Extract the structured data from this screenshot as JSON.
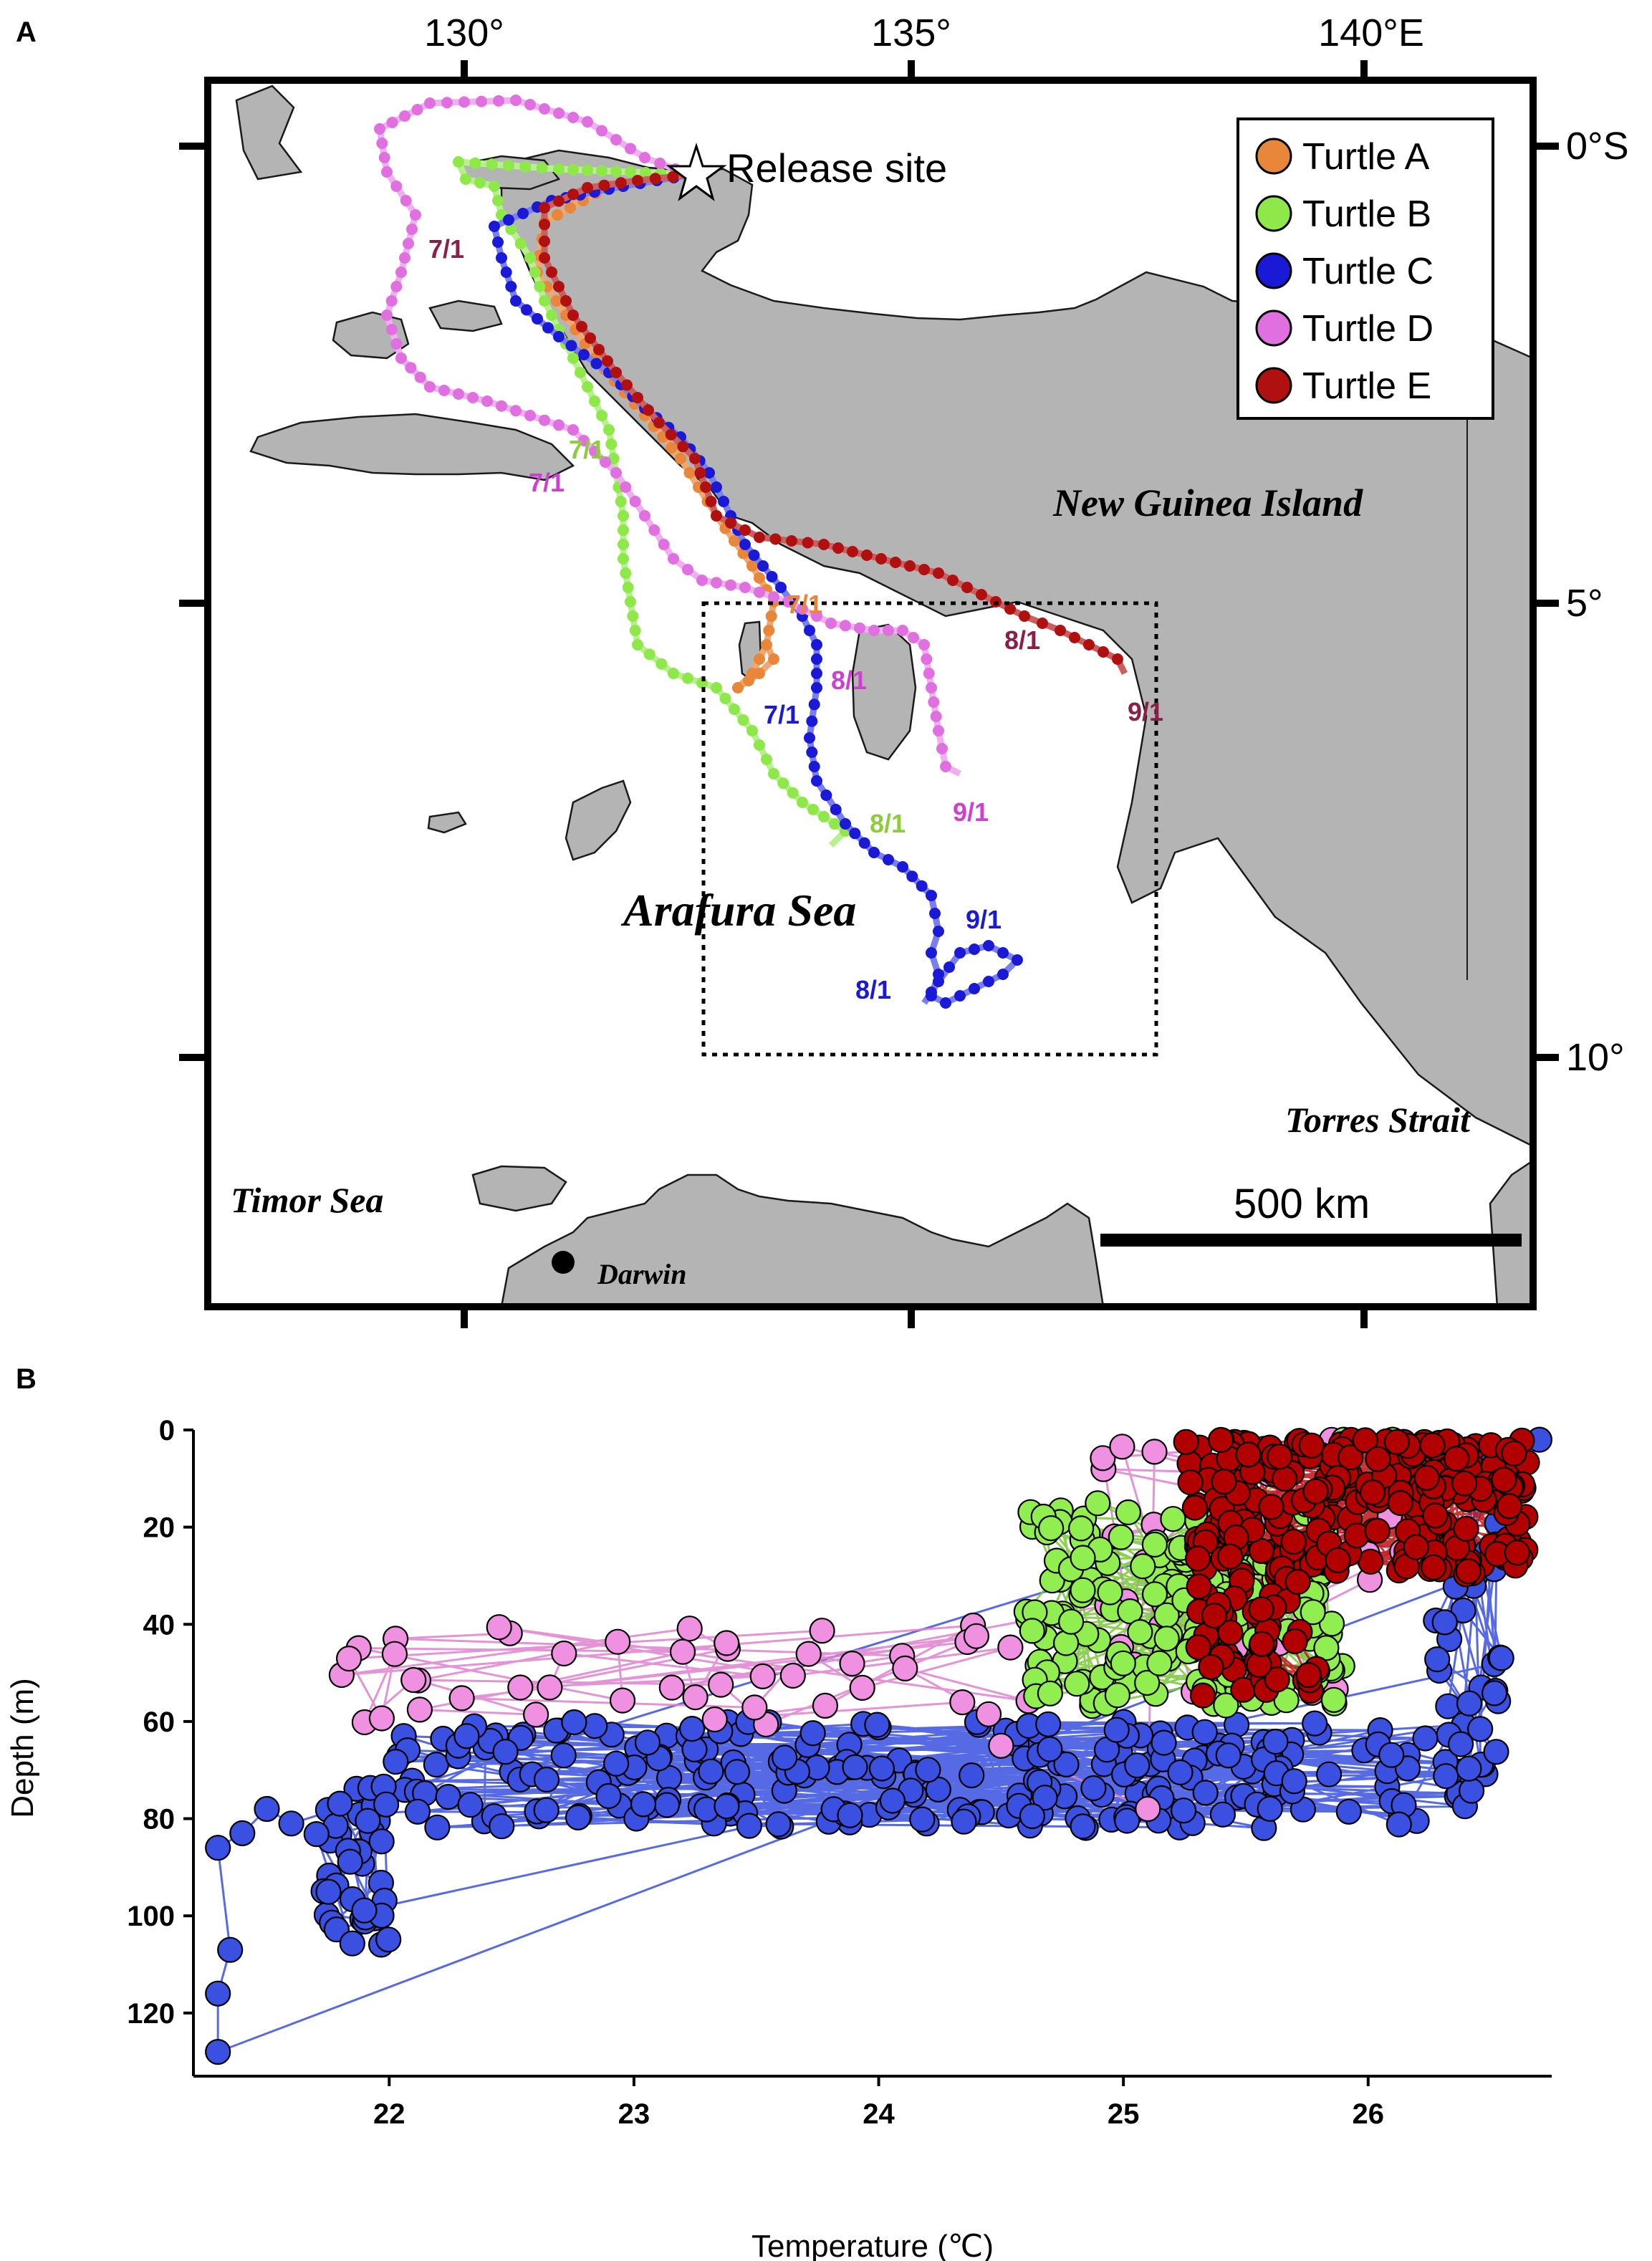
{
  "panel_a": {
    "letter": "A",
    "lon_labels": [
      "130°",
      "135°",
      "140°E"
    ],
    "lat_labels": [
      "0°S",
      "5°",
      "10°"
    ],
    "places": {
      "new_guinea": "New Guinea Island",
      "arafura": "Arafura Sea",
      "timor": "Timor Sea",
      "torres": "Torres Strait",
      "darwin": "Darwin"
    },
    "release_label": "Release site",
    "scale_label": "500 km",
    "legend": [
      {
        "name": "Turtle A",
        "color": "#e8863a"
      },
      {
        "name": "Turtle B",
        "color": "#8ee84a"
      },
      {
        "name": "Turtle C",
        "color": "#1a1ad6"
      },
      {
        "name": "Turtle D",
        "color": "#e070e0"
      },
      {
        "name": "Turtle E",
        "color": "#b01010"
      }
    ],
    "date_labels": [
      {
        "text": "7/1",
        "color": "#8a1f4a"
      },
      {
        "text": "7/1",
        "color": "#8ecc3a"
      },
      {
        "text": "7/1",
        "color": "#d040d0"
      },
      {
        "text": "7/1",
        "color": "#e8863a"
      },
      {
        "text": "7/1",
        "color": "#1a1ad6"
      },
      {
        "text": "8/1",
        "color": "#d040d0"
      },
      {
        "text": "8/1",
        "color": "#8a1f4a"
      },
      {
        "text": "9/1",
        "color": "#8a1f4a"
      },
      {
        "text": "9/1",
        "color": "#d040d0"
      },
      {
        "text": "8/1",
        "color": "#8ecc3a"
      },
      {
        "text": "9/1",
        "color": "#1a1ad6"
      },
      {
        "text": "8/1",
        "color": "#1a1ad6"
      }
    ]
  },
  "panel_b": {
    "letter": "B",
    "chart_data": {
      "type": "scatter",
      "xlabel": "Temperature (℃)",
      "ylabel": "Depth (m)",
      "xlim": [
        21.2,
        26.75
      ],
      "ylim": [
        133,
        0
      ],
      "xticks": [
        22,
        23,
        24,
        25,
        26
      ],
      "yticks": [
        0,
        20,
        40,
        60,
        80,
        100,
        120
      ],
      "series": [
        {
          "name": "Turtle C",
          "color": "#3a50e0",
          "fill": "#3a50e0",
          "clusters": [
            {
              "x": [
                22.0,
                26.5
              ],
              "y": [
                60,
                82
              ],
              "n": 260
            },
            {
              "x": [
                21.7,
                22.0
              ],
              "y": [
                73,
                106
              ],
              "n": 40
            },
            {
              "x": [
                26.25,
                26.55
              ],
              "y": [
                3,
                72
              ],
              "n": 34
            }
          ],
          "points": [
            [
              21.3,
              128
            ],
            [
              21.3,
              116
            ],
            [
              21.35,
              107
            ],
            [
              21.3,
              86
            ],
            [
              21.4,
              83
            ],
            [
              21.5,
              78
            ],
            [
              21.6,
              81
            ],
            [
              26.7,
              2
            ]
          ]
        },
        {
          "name": "Turtle D",
          "color": "#e080d0",
          "fill": "#f090e0",
          "clusters": [
            {
              "x": [
                21.8,
                24.7
              ],
              "y": [
                40,
                62
              ],
              "n": 45
            },
            {
              "x": [
                24.9,
                26.2
              ],
              "y": [
                2,
                60
              ],
              "n": 40
            }
          ],
          "points": [
            [
              25.1,
              78
            ],
            [
              24.5,
              65
            ]
          ]
        },
        {
          "name": "Turtle B",
          "color": "#7ac83a",
          "fill": "#90ee50",
          "clusters": [
            {
              "x": [
                24.6,
                25.9
              ],
              "y": [
                15,
                58
              ],
              "n": 190
            }
          ],
          "points": [
            [
              25.9,
              2
            ],
            [
              26.1,
              2
            ]
          ]
        },
        {
          "name": "Turtle E",
          "color": "#c01010",
          "fill": "#b00000",
          "clusters": [
            {
              "x": [
                25.25,
                26.65
              ],
              "y": [
                2,
                30
              ],
              "n": 260
            },
            {
              "x": [
                25.3,
                25.8
              ],
              "y": [
                30,
                55
              ],
              "n": 50
            }
          ],
          "points": []
        }
      ]
    }
  }
}
